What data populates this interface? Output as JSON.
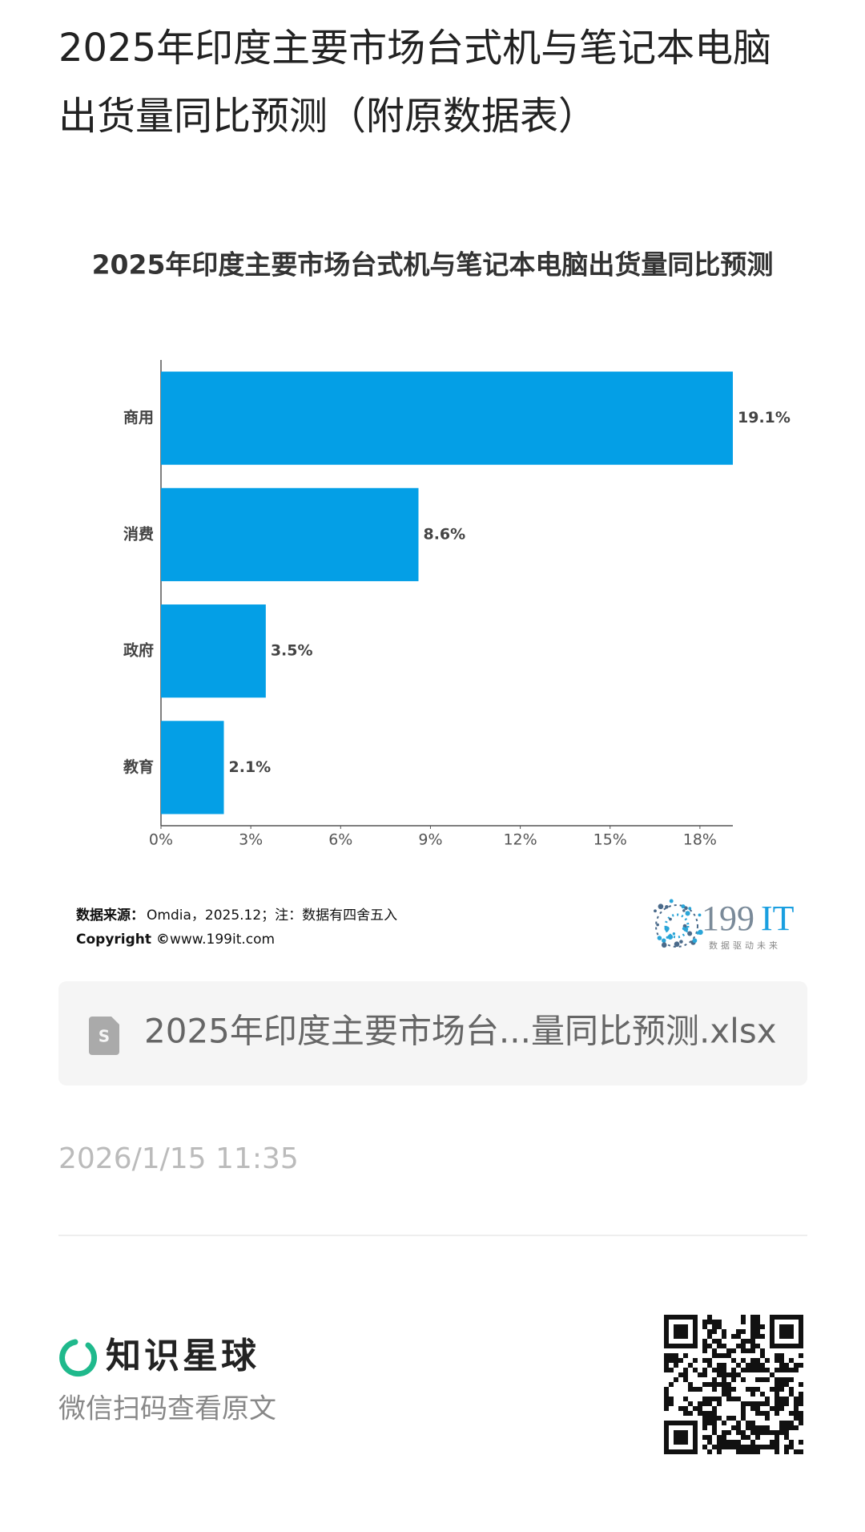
{
  "header": {
    "title_line1": "2025年印度主要市场台式机与笔记本电脑",
    "title_line2": "出货量同比预测（附原数据表）"
  },
  "chart_data": {
    "type": "hbar",
    "title": "2025年印度主要市场台式机与笔记本电脑出货量同比预测",
    "categories": [
      "商用",
      "消费",
      "政府",
      "教育"
    ],
    "values": [
      19.1,
      8.6,
      3.5,
      2.1
    ],
    "value_labels": [
      "19.1%",
      "8.6%",
      "3.5%",
      "2.1%"
    ],
    "color": "#049fe6",
    "xlim": [
      0,
      19.1
    ],
    "xticks": [
      {
        "value": 0,
        "label": "0%"
      },
      {
        "value": 3,
        "label": "3%"
      },
      {
        "value": 6,
        "label": "6%"
      },
      {
        "value": 9,
        "label": "9%"
      },
      {
        "value": 12,
        "label": "12%"
      },
      {
        "value": 15,
        "label": "15%"
      },
      {
        "value": 18,
        "label": "18%"
      }
    ],
    "grid": false
  },
  "source": {
    "label": "数据来源：",
    "text": "Omdia，2025.12；注：数据有四舍五入"
  },
  "copyright": {
    "label": "Copyright ©",
    "text": "www.199it.com"
  },
  "logo": {
    "number": "199",
    "letters": "IT",
    "slogan": "数据驱动未来"
  },
  "attachment": {
    "file_name": "2025年印度主要市场台...量同比预测.xlsx"
  },
  "timestamp": "2026/1/15 11:35",
  "footer": {
    "brand": "知识星球",
    "hint": "微信扫码查看原文"
  }
}
